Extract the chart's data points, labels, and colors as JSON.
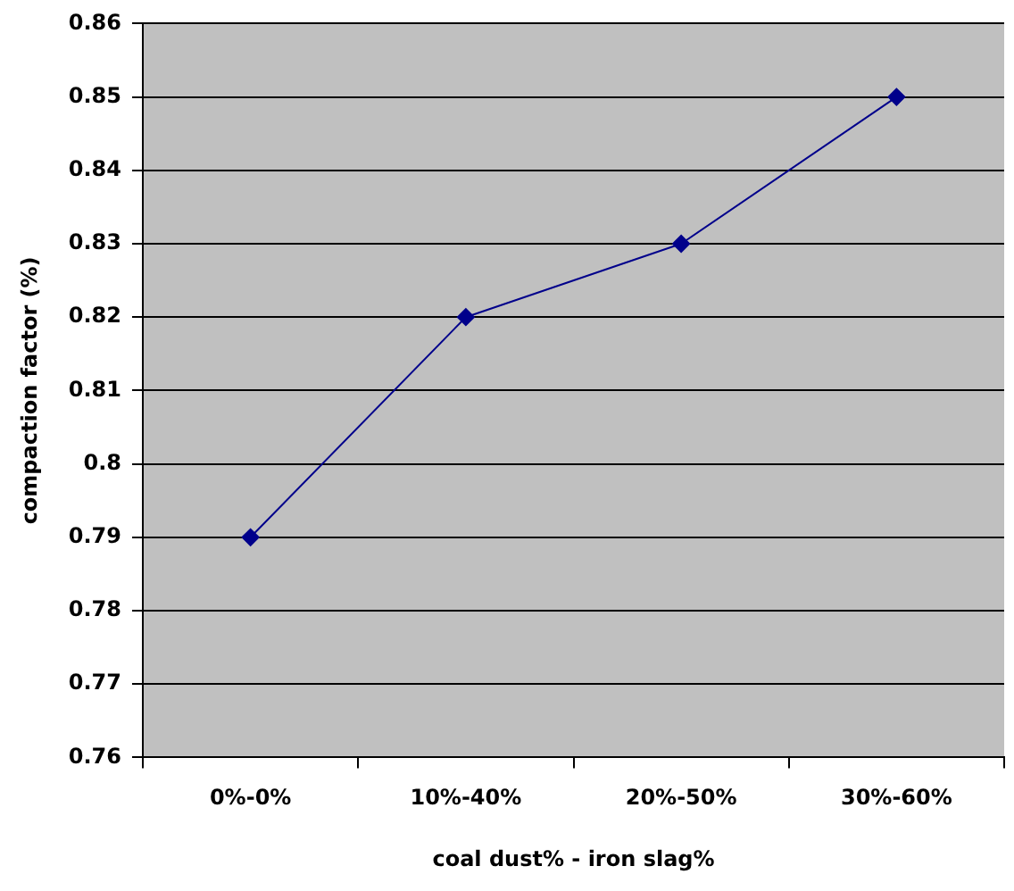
{
  "chart_data": {
    "type": "line",
    "xlabel": "coal dust% - iron slag%",
    "ylabel": "compaction factor (%)",
    "categories": [
      "0%-0%",
      "10%-40%",
      "20%-50%",
      "30%-60%"
    ],
    "series": [
      {
        "color": "#00008b",
        "values": [
          0.79,
          0.82,
          0.83,
          0.85
        ]
      }
    ],
    "ylim": [
      0.76,
      0.86
    ],
    "yticks": [
      0.76,
      0.77,
      0.78,
      0.79,
      0.8,
      0.81,
      0.82,
      0.83,
      0.84,
      0.85,
      0.86
    ],
    "grid": "y",
    "legend": false,
    "marker": "diamond",
    "line_style": "solid"
  }
}
